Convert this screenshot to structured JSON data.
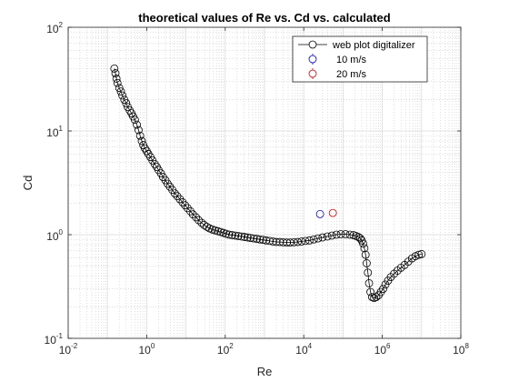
{
  "chart_data": {
    "type": "scatter",
    "title": "theoretical values of Re vs. Cd vs. calculated",
    "xlabel": "Re",
    "ylabel": "Cd",
    "xscale": "log",
    "yscale": "log",
    "xlim": [
      0.01,
      100000000
    ],
    "ylim": [
      0.1,
      100
    ],
    "grid": true,
    "minor_grid": true,
    "legend_position": "top-right",
    "x_ticks": [
      {
        "value": 0.01,
        "base": "10",
        "exp": "-2"
      },
      {
        "value": 1,
        "base": "10",
        "exp": "0"
      },
      {
        "value": 100,
        "base": "10",
        "exp": "2"
      },
      {
        "value": 10000,
        "base": "10",
        "exp": "4"
      },
      {
        "value": 1000000,
        "base": "10",
        "exp": "6"
      },
      {
        "value": 100000000,
        "base": "10",
        "exp": "8"
      }
    ],
    "y_ticks": [
      {
        "value": 0.1,
        "base": "10",
        "exp": "-1"
      },
      {
        "value": 1,
        "base": "10",
        "exp": "0"
      },
      {
        "value": 10,
        "base": "10",
        "exp": "1"
      },
      {
        "value": 100,
        "base": "10",
        "exp": "2"
      }
    ],
    "series": [
      {
        "name": "web plot digitalizer",
        "color": "#000000",
        "marker": "circle",
        "line": true,
        "x": [
          0.15,
          0.16,
          0.17,
          0.18,
          0.2,
          0.22,
          0.24,
          0.27,
          0.3,
          0.33,
          0.37,
          0.41,
          0.45,
          0.5,
          0.56,
          0.62,
          0.68,
          0.75,
          0.82,
          0.9,
          1.0,
          1.1,
          1.25,
          1.4,
          1.6,
          1.8,
          2.0,
          2.3,
          2.6,
          3.0,
          3.4,
          3.9,
          4.5,
          5.2,
          6.0,
          7.0,
          8.2,
          9.5,
          11,
          13,
          15,
          18,
          21,
          25,
          29,
          34,
          40,
          47,
          55,
          65,
          77,
          90,
          105,
          125,
          150,
          180,
          215,
          260,
          310,
          370,
          440,
          530,
          640,
          770,
          920,
          1100,
          1350,
          1650,
          2000,
          2450,
          3000,
          3700,
          4500,
          5600,
          7000,
          8800,
          11000,
          14000,
          18000,
          23000,
          30000,
          40000,
          52000,
          68000,
          88000,
          115000,
          150000,
          185000,
          215000,
          245000,
          275000,
          300000,
          325000,
          350000,
          375000,
          400000,
          430000,
          460000,
          500000,
          550000,
          620000,
          700000,
          800000,
          920000,
          1050000,
          1200000,
          1400000,
          1650000,
          2000000,
          2450000,
          3000000,
          3700000,
          4600000,
          5700000,
          7000000,
          8500000,
          10000000
        ],
        "y": [
          40,
          36,
          32,
          29,
          26,
          24,
          22,
          20,
          18.5,
          17,
          15.8,
          14.8,
          13.8,
          12.8,
          11.5,
          10.2,
          9.0,
          8.0,
          7.3,
          6.8,
          6.4,
          6.0,
          5.6,
          5.2,
          4.8,
          4.5,
          4.2,
          3.9,
          3.6,
          3.35,
          3.1,
          2.9,
          2.7,
          2.5,
          2.35,
          2.2,
          2.05,
          1.92,
          1.8,
          1.68,
          1.57,
          1.47,
          1.38,
          1.3,
          1.24,
          1.19,
          1.15,
          1.12,
          1.1,
          1.08,
          1.06,
          1.04,
          1.02,
          1.0,
          0.99,
          0.98,
          0.97,
          0.96,
          0.95,
          0.94,
          0.93,
          0.92,
          0.91,
          0.9,
          0.89,
          0.88,
          0.87,
          0.86,
          0.85,
          0.85,
          0.845,
          0.84,
          0.84,
          0.845,
          0.85,
          0.86,
          0.87,
          0.88,
          0.9,
          0.92,
          0.94,
          0.96,
          0.98,
          1.0,
          1.01,
          1.01,
          1.0,
          0.99,
          0.97,
          0.95,
          0.92,
          0.88,
          0.82,
          0.74,
          0.64,
          0.53,
          0.43,
          0.34,
          0.28,
          0.25,
          0.245,
          0.25,
          0.26,
          0.28,
          0.3,
          0.33,
          0.36,
          0.39,
          0.42,
          0.45,
          0.48,
          0.51,
          0.55,
          0.59,
          0.62,
          0.64,
          0.65
        ]
      },
      {
        "name": "10 m/s",
        "color": "#0000cc",
        "marker": "circle",
        "line": false,
        "x": [
          26000
        ],
        "y": [
          1.58
        ]
      },
      {
        "name": "20 m/s",
        "color": "#cc0000",
        "marker": "circle",
        "line": false,
        "x": [
          55000
        ],
        "y": [
          1.62
        ]
      }
    ]
  }
}
